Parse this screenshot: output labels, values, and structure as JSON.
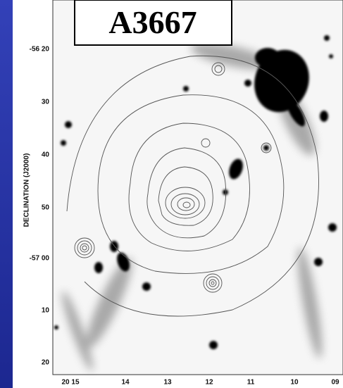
{
  "title": "A3667",
  "y_axis": {
    "title": "DECLINATION (J2000)",
    "labels": [
      "-56 20",
      "30",
      "40",
      "50",
      "-57 00",
      "10",
      "20"
    ]
  },
  "x_axis": {
    "labels": [
      "20 15",
      "14",
      "13",
      "12",
      "11",
      "10",
      "09"
    ]
  }
}
